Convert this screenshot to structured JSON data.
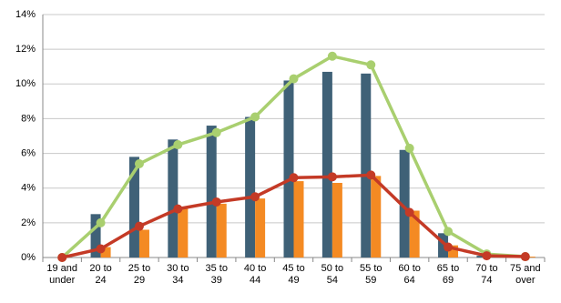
{
  "chart_data": {
    "type": "bar",
    "categories": [
      "19 and\nunder",
      "20 to\n24",
      "25 to\n29",
      "30 to\n34",
      "35 to\n39",
      "40 to\n44",
      "45 to\n49",
      "50 to\n54",
      "55 to\n59",
      "60 to\n64",
      "65 to\n69",
      "70 to\n74",
      "75 and\nover"
    ],
    "series": [
      {
        "type": "bar",
        "color": "#3f6177",
        "values": [
          0,
          2.5,
          5.8,
          6.8,
          7.6,
          8.1,
          10.2,
          10.7,
          10.6,
          6.2,
          1.4,
          0.1,
          0
        ]
      },
      {
        "type": "bar",
        "color": "#f48a23",
        "values": [
          0,
          0.6,
          1.6,
          2.9,
          3.1,
          3.4,
          4.4,
          4.3,
          4.7,
          2.7,
          0.7,
          0.1,
          0.05
        ]
      },
      {
        "type": "line",
        "color": "#a9cf6f",
        "values": [
          0,
          2.0,
          5.4,
          6.5,
          7.2,
          8.1,
          10.3,
          11.6,
          11.1,
          6.3,
          1.5,
          0.2,
          0.05
        ]
      },
      {
        "type": "line",
        "color": "#c43a26",
        "values": [
          0,
          0.5,
          1.8,
          2.8,
          3.2,
          3.5,
          4.6,
          4.65,
          4.75,
          2.6,
          0.6,
          0.1,
          0.05
        ]
      }
    ],
    "ylim": [
      0,
      14
    ],
    "yticks": [
      {
        "value": 0,
        "label": "0%"
      },
      {
        "value": 2,
        "label": "2%"
      },
      {
        "value": 4,
        "label": "4%"
      },
      {
        "value": 6,
        "label": "6%"
      },
      {
        "value": 8,
        "label": "8%"
      },
      {
        "value": 10,
        "label": "10%"
      },
      {
        "value": 12,
        "label": "12%"
      },
      {
        "value": 14,
        "label": "14%"
      }
    ],
    "grid": true
  }
}
